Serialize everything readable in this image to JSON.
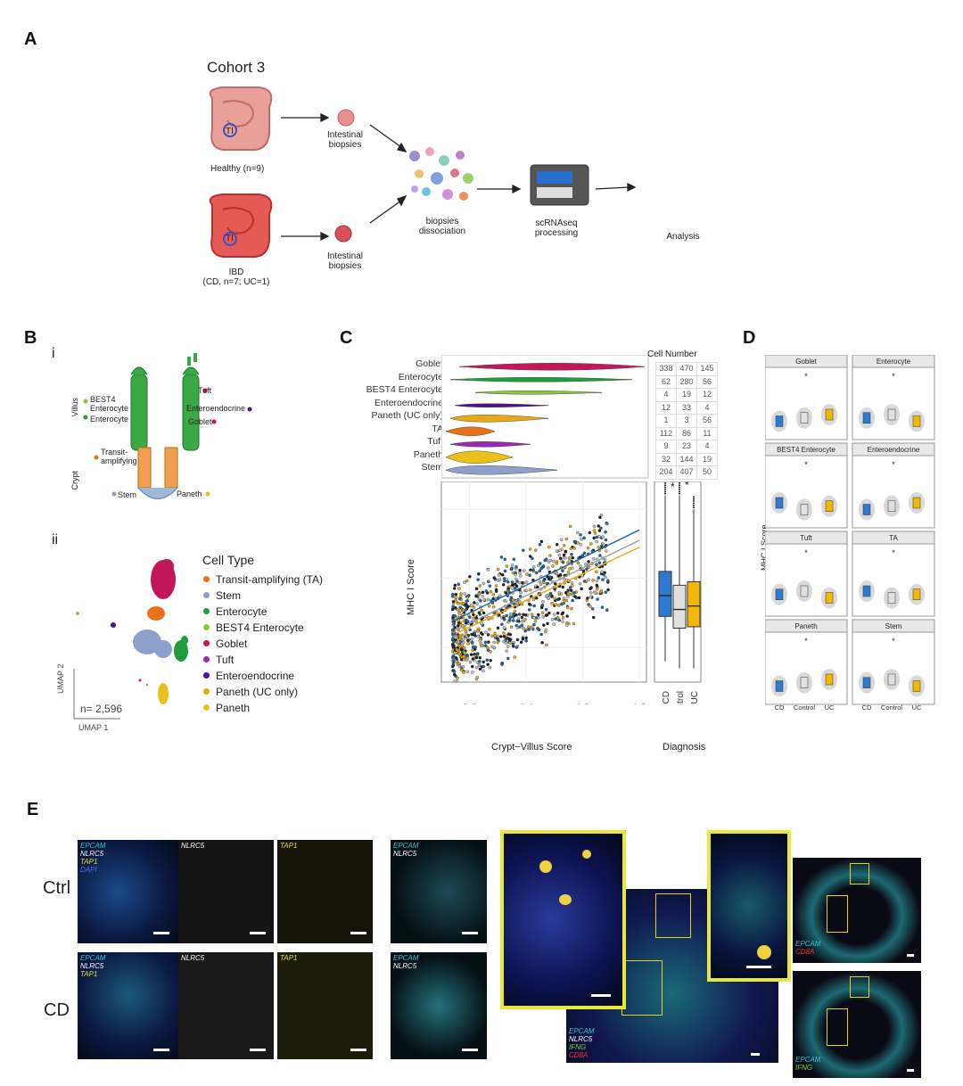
{
  "panels": {
    "A": "A",
    "B": "B",
    "C": "C",
    "D": "D",
    "E": "E"
  },
  "panelA": {
    "cohort": "Cohort 3",
    "ti": "TI",
    "healthy": "Healthy (n=9)",
    "ibd_line1": "IBD",
    "ibd_line2": "(CD, n=7; UC=1)",
    "biopsies_line1": "Intestinal",
    "biopsies_line2": "biopsies",
    "dissoc_line1": "biopsies",
    "dissoc_line2": "dissociation",
    "scrna_line1": "scRNAseq",
    "scrna_line2": "processing",
    "analysis": "Analysis"
  },
  "panelB": {
    "sub_i": "i",
    "sub_ii": "ii",
    "villus": "Villus",
    "crypt": "Crypt",
    "best4_line1": "BEST4",
    "best4_line2": "Enterocyte",
    "enterocyte": "Enterocyte",
    "ta_line1": "Transit-",
    "ta_line2": "amplifying",
    "stem": "Stem",
    "tuft": "Tuft",
    "enteroendocrine": "Enteroendocrine",
    "goblet": "Goblet",
    "paneth": "Paneth",
    "legend_title": "Cell Type",
    "legend": [
      {
        "label": "Transit-amplifying (TA)",
        "color": "#e8711a"
      },
      {
        "label": "Stem",
        "color": "#8da0cb"
      },
      {
        "label": "Enterocyte",
        "color": "#1e9e3a"
      },
      {
        "label": "BEST4 Enterocyte",
        "color": "#8cc63f"
      },
      {
        "label": "Goblet",
        "color": "#c2185b"
      },
      {
        "label": "Tuft",
        "color": "#9c27b0"
      },
      {
        "label": "Enteroendocrine",
        "color": "#4a148c"
      },
      {
        "label": "Paneth (UC only)",
        "color": "#e6a817"
      },
      {
        "label": "Paneth",
        "color": "#e8c21a"
      }
    ],
    "n_label": "n= 2,596",
    "umap1": "UMAP 1",
    "umap2": "UMAP 2"
  },
  "panelC": {
    "cell_number_title": "Cell Number",
    "rows": [
      {
        "name": "Goblet",
        "counts": [
          "338",
          "470",
          "145"
        ],
        "color": "#c2185b"
      },
      {
        "name": "Enterocyte",
        "counts": [
          "62",
          "280",
          "56"
        ],
        "color": "#1e9e3a"
      },
      {
        "name": "BEST4 Enterocyte",
        "counts": [
          "4",
          "19",
          "12"
        ],
        "color": "#8cc63f"
      },
      {
        "name": "Enteroendocrine",
        "counts": [
          "12",
          "33",
          "4"
        ],
        "color": "#4a148c"
      },
      {
        "name": "Paneth (UC only)",
        "counts": [
          "1",
          "3",
          "56"
        ],
        "color": "#e6a817"
      },
      {
        "name": "TA",
        "counts": [
          "112",
          "86",
          "11"
        ],
        "color": "#e8711a"
      },
      {
        "name": "Tuft",
        "counts": [
          "9",
          "23",
          "4"
        ],
        "color": "#9c27b0"
      },
      {
        "name": "Paneth",
        "counts": [
          "32",
          "144",
          "19"
        ],
        "color": "#e8c21a"
      },
      {
        "name": "Stem",
        "counts": [
          "204",
          "407",
          "50"
        ],
        "color": "#8da0cb"
      }
    ],
    "ylabel": "MHC I Score",
    "xlabel": "Crypt−Villus Score",
    "diag_label": "Diagnosis",
    "x_ticks": [
      "0.0",
      "0.4",
      "0.8",
      "1.2"
    ],
    "y_ticks": [
      "0",
      "1",
      "2"
    ],
    "box_categories": [
      "CD",
      "Control",
      "UC"
    ],
    "star": "*"
  },
  "panelD": {
    "ylabel": "MHC I Score",
    "facets": [
      "Goblet",
      "Enterocyte",
      "BEST4 Enterocyte",
      "Enteroendocrine",
      "Tuft",
      "TA",
      "Paneth",
      "Stem"
    ],
    "y_ticks": [
      "0",
      "1",
      "2"
    ],
    "x_categories": [
      "CD",
      "Control",
      "UC"
    ],
    "star": "*"
  },
  "panelE": {
    "ctrl": "Ctrl",
    "cd": "CD",
    "ch_epcam": "EPCAM",
    "ch_nlrc5": "NLRC5",
    "ch_tap1": "TAP1",
    "ch_dapi": "DAPI",
    "ch_ifng": "IFNG",
    "ch_cd8a": "CD8A",
    "colors": {
      "cyan": "#2fc7d4",
      "white": "#ffffff",
      "yellow": "#e8e23a",
      "blue": "#4a6fff",
      "green": "#7cd13a",
      "red": "#ff3030"
    }
  },
  "chart_data": [
    {
      "type": "scatter",
      "title": "",
      "xlabel": "Crypt−Villus Score",
      "ylabel": "MHC I Score",
      "xlim": [
        -0.2,
        1.25
      ],
      "ylim": [
        -0.5,
        2.4
      ],
      "series": [
        {
          "name": "CD",
          "color": "#2166ac",
          "trend": [
            [
              -0.1,
              0.4
            ],
            [
              1.2,
              1.7
            ]
          ]
        },
        {
          "name": "Control",
          "color": "#9e9e9e",
          "trend": [
            [
              -0.1,
              0.25
            ],
            [
              1.2,
              1.55
            ]
          ]
        },
        {
          "name": "UC",
          "color": "#e6a817",
          "trend": [
            [
              -0.1,
              0.2
            ],
            [
              1.2,
              1.45
            ]
          ]
        }
      ]
    },
    {
      "type": "box",
      "xlabel": "Diagnosis",
      "categories": [
        "CD",
        "Control",
        "UC"
      ],
      "median": [
        0.75,
        0.55,
        0.6
      ],
      "q1": [
        0.45,
        0.28,
        0.3
      ],
      "q3": [
        1.1,
        0.9,
        0.95
      ],
      "whisker_low": [
        -0.2,
        -0.3,
        -0.3
      ],
      "whisker_high": [
        2.2,
        2.2,
        2.0
      ],
      "colors": [
        "#2c7bd0",
        "#e0e0e0",
        "#f5b800"
      ]
    }
  ]
}
